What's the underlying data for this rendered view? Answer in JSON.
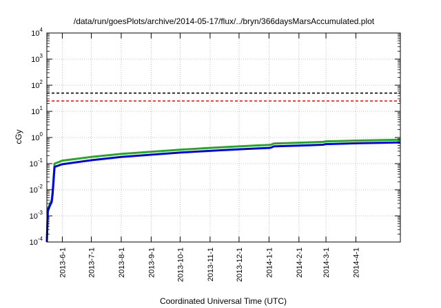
{
  "chart_data": {
    "type": "line",
    "title": "/data/run/goesPlots/archive/2014-05-17/flux/../bryn/366daysMarsAccumulated.plot",
    "xlabel": "Coordinated Universal Time (UTC)",
    "ylabel": "cGy",
    "x_scale": "date",
    "y_scale": "log",
    "xlim": [
      "2013-05-16",
      "2014-05-17"
    ],
    "ylim": [
      0.0001,
      10000
    ],
    "grid": true,
    "x_ticks": [
      "2013-6-1",
      "2013-7-1",
      "2013-8-1",
      "2013-9-1",
      "2013-10-1",
      "2013-11-1",
      "2013-12-1",
      "2014-1-1",
      "2014-2-1",
      "2014-3-1",
      "2014-4-1"
    ],
    "x_tick_dates": [
      "2013-06-01",
      "2013-07-01",
      "2013-08-01",
      "2013-09-01",
      "2013-10-01",
      "2013-11-01",
      "2013-12-01",
      "2014-01-01",
      "2014-02-01",
      "2014-03-01",
      "2014-04-01"
    ],
    "y_ticks": [
      {
        "base": "10",
        "exp": "-4",
        "value": 0.0001
      },
      {
        "base": "10",
        "exp": "-3",
        "value": 0.001
      },
      {
        "base": "10",
        "exp": "-2",
        "value": 0.01
      },
      {
        "base": "10",
        "exp": "-1",
        "value": 0.1
      },
      {
        "base": "10",
        "exp": "0",
        "value": 1
      },
      {
        "base": "10",
        "exp": "1",
        "value": 10
      },
      {
        "base": "10",
        "exp": "2",
        "value": 100
      },
      {
        "base": "10",
        "exp": "3",
        "value": 1000
      },
      {
        "base": "10",
        "exp": "4",
        "value": 10000
      }
    ],
    "reference_lines": [
      {
        "y": 50,
        "color": "#000000",
        "style": "dashed"
      },
      {
        "y": 25,
        "color": "#ff0000",
        "style": "dashed"
      }
    ],
    "series": [
      {
        "color": "#22aa22",
        "x": [
          "2013-05-16",
          "2013-05-17",
          "2013-05-19",
          "2013-05-21",
          "2013-05-22",
          "2013-05-24",
          "2013-06-01",
          "2013-07-01",
          "2013-08-01",
          "2013-09-01",
          "2013-10-01",
          "2013-11-01",
          "2013-12-01",
          "2014-01-01",
          "2014-01-03",
          "2014-01-06",
          "2014-02-01",
          "2014-02-26",
          "2014-02-28",
          "2014-03-01",
          "2014-04-01",
          "2014-05-17"
        ],
        "y": [
          0.0001,
          0.0018,
          0.0028,
          0.004,
          0.009,
          0.1,
          0.13,
          0.18,
          0.235,
          0.285,
          0.34,
          0.4,
          0.46,
          0.52,
          0.53,
          0.59,
          0.63,
          0.68,
          0.7,
          0.71,
          0.76,
          0.82
        ]
      },
      {
        "color": "#0000ee",
        "x": [
          "2013-05-16",
          "2013-05-17",
          "2013-05-19",
          "2013-05-21",
          "2013-05-22",
          "2013-05-24",
          "2013-06-01",
          "2013-07-01",
          "2013-08-01",
          "2013-09-01",
          "2013-10-01",
          "2013-11-01",
          "2013-12-01",
          "2014-01-01",
          "2014-01-03",
          "2014-01-06",
          "2014-02-01",
          "2014-02-26",
          "2014-02-28",
          "2014-03-01",
          "2014-04-01",
          "2014-05-17"
        ],
        "y": [
          0.0001,
          0.0015,
          0.0024,
          0.0034,
          0.007,
          0.075,
          0.095,
          0.135,
          0.18,
          0.22,
          0.265,
          0.31,
          0.355,
          0.4,
          0.41,
          0.46,
          0.49,
          0.53,
          0.55,
          0.56,
          0.6,
          0.65
        ]
      }
    ]
  }
}
